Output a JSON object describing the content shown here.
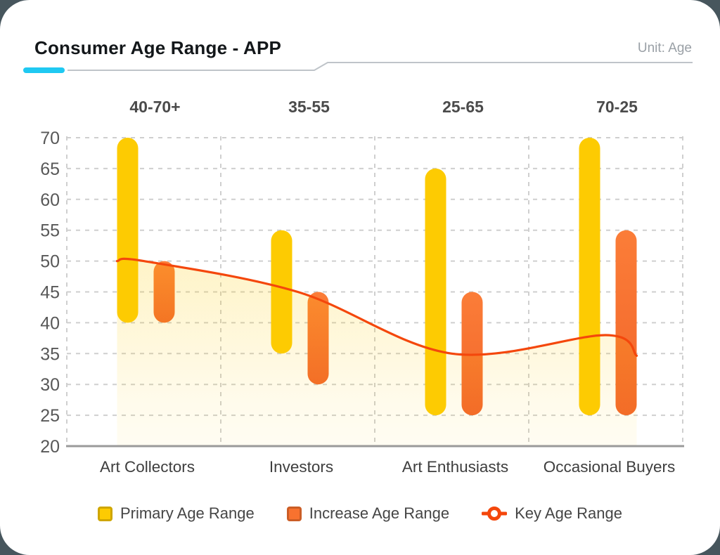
{
  "page": {
    "background_color": "#47565D",
    "card_background": "#FFFFFF"
  },
  "header": {
    "title": "Consumer Age Range - APP",
    "unit_label": "Unit: Age",
    "accent_color": "#1FC9F2",
    "divider_color": "#BFC4C9"
  },
  "chart_data": {
    "type": "bar",
    "title": "Consumer Age Range - APP",
    "subtitle": "",
    "unit": "Age",
    "categories": [
      "Art Collectors",
      "Investors",
      "Art Enthusiasts",
      "Occasional Buyers"
    ],
    "top_labels": [
      "40-70+",
      "35-55",
      "25-65",
      "70-25"
    ],
    "xlabel": "",
    "ylabel": "",
    "ylim": [
      20,
      70
    ],
    "y_ticks": [
      20,
      25,
      30,
      35,
      40,
      45,
      50,
      55,
      60,
      65,
      70
    ],
    "grid": {
      "horizontal": "dashed",
      "vertical": "dashed",
      "grid_color": "#CFCFCF",
      "axis_color": "#9A9A9A"
    },
    "legend_position": "bottom",
    "series": [
      {
        "name": "Primary Age Range",
        "type": "range_bar",
        "color": "#FDCB02",
        "ranges": [
          [
            40,
            70
          ],
          [
            35,
            55
          ],
          [
            25,
            65
          ],
          [
            25,
            70
          ]
        ]
      },
      {
        "name": "Increase Age Range",
        "type": "range_bar",
        "color": "#FB7D38",
        "color2": "#F2652A",
        "ranges": [
          [
            40,
            50
          ],
          [
            30,
            45
          ],
          [
            25,
            45
          ],
          [
            25,
            55
          ]
        ]
      },
      {
        "name": "Key Age Range",
        "type": "line",
        "color": "#F4470C",
        "area": true,
        "area_color": "#FDCB02",
        "start_value": 50,
        "values": [
          50,
          45,
          35,
          38
        ],
        "end_value": 35
      }
    ]
  },
  "legend": {
    "items": [
      {
        "label": "Primary Age Range",
        "marker": "square",
        "color": "#FDCB02"
      },
      {
        "label": "Increase Age Range",
        "marker": "square",
        "color": "#F8722F"
      },
      {
        "label": "Key Age Range",
        "marker": "ring-line",
        "color": "#F4470C"
      }
    ]
  }
}
